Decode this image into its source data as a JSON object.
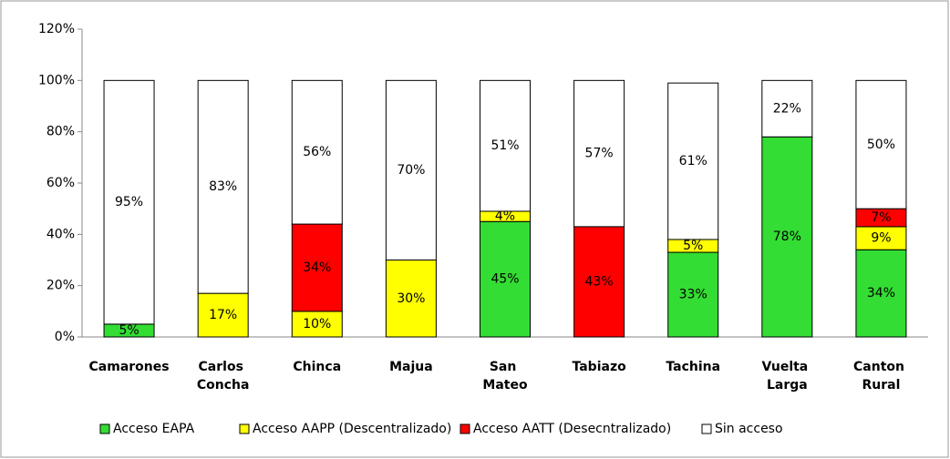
{
  "chart_data": {
    "type": "stacked_bar",
    "categories": [
      "Camarones",
      "Carlos Concha",
      "Chinca",
      "Majua",
      "San Mateo",
      "Tabiazo",
      "Tachina",
      "Vuelta Larga",
      "Canton Rural"
    ],
    "series": [
      {
        "name": "Acceso EAPA",
        "color": "#33dd33",
        "values": [
          5,
          0,
          0,
          0,
          45,
          0,
          33,
          78,
          34
        ],
        "value_labels": [
          "5%",
          null,
          null,
          null,
          "45%",
          null,
          "33%",
          "78%",
          "34%"
        ]
      },
      {
        "name": "Acceso AAPP (Descentralizado)",
        "color": "#ffff00",
        "values": [
          0,
          17,
          10,
          30,
          4,
          0,
          5,
          0,
          9
        ],
        "value_labels": [
          null,
          "17%",
          "10%",
          "30%",
          "4%",
          null,
          "5%",
          null,
          "9%"
        ]
      },
      {
        "name": "Acceso AATT (Desecntralizado)",
        "color": "#ff0000",
        "values": [
          0,
          0,
          34,
          0,
          0,
          43,
          0,
          0,
          7
        ],
        "value_labels": [
          null,
          null,
          "34%",
          null,
          null,
          "43%",
          null,
          null,
          "7%"
        ]
      },
      {
        "name": "Sin acceso",
        "color": "#ffffff",
        "values": [
          95,
          83,
          56,
          70,
          51,
          57,
          61,
          22,
          50
        ],
        "value_labels": [
          "95%",
          "83%",
          "56%",
          "70%",
          "51%",
          "57%",
          "61%",
          "22%",
          "50%"
        ]
      }
    ],
    "ylim": [
      0,
      120
    ],
    "yticks": [
      {
        "value": 0,
        "label": "0%"
      },
      {
        "value": 20,
        "label": "20%"
      },
      {
        "value": 40,
        "label": "40%"
      },
      {
        "value": 60,
        "label": "60%"
      },
      {
        "value": 80,
        "label": "80%"
      },
      {
        "value": 100,
        "label": "100%"
      },
      {
        "value": 120,
        "label": "120%"
      }
    ],
    "grid": false,
    "legend": "bottom"
  }
}
